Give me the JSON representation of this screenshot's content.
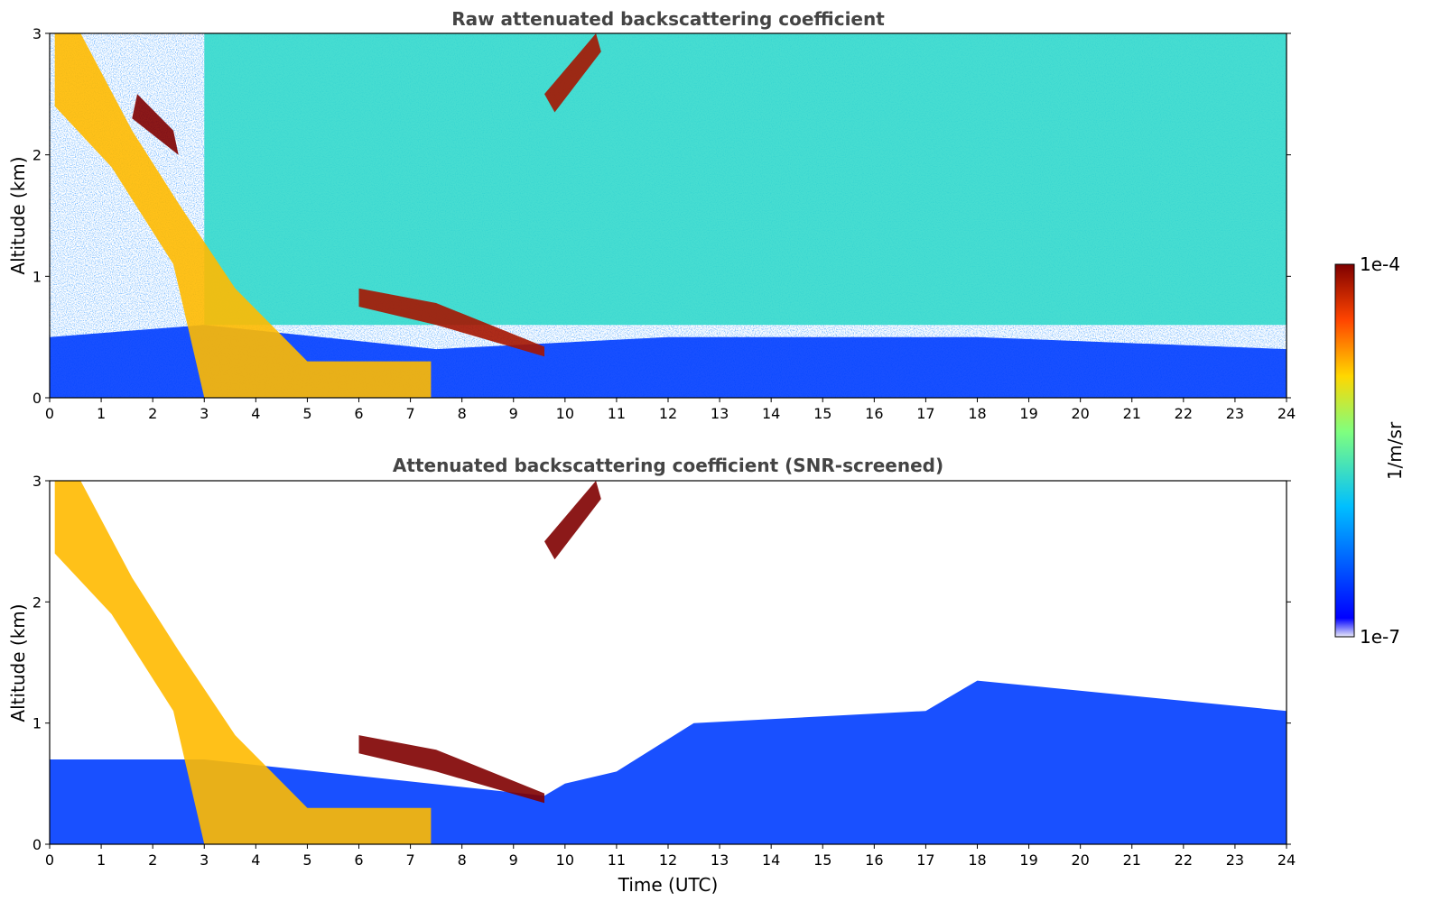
{
  "chart_data": [
    {
      "type": "heatmap",
      "title": "Raw attenuated backscattering coefficient",
      "xlabel": "",
      "ylabel": "Altitude (km)",
      "xlim": [
        0,
        24
      ],
      "ylim": [
        0,
        3
      ],
      "x_ticks": [
        "0",
        "1",
        "2",
        "3",
        "4",
        "5",
        "6",
        "7",
        "8",
        "9",
        "10",
        "11",
        "12",
        "13",
        "14",
        "15",
        "16",
        "17",
        "18",
        "19",
        "20",
        "21",
        "22",
        "23",
        "24"
      ],
      "y_ticks": [
        "0",
        "1",
        "2",
        "3"
      ],
      "features": [
        {
          "name": "low aerosol layer",
          "level": 0.22,
          "points": [
            [
              0,
              0
            ],
            [
              24,
              0
            ],
            [
              24,
              0.4
            ],
            [
              18,
              0.5
            ],
            [
              12,
              0.5
            ],
            [
              7.5,
              0.4
            ],
            [
              3,
              0.6
            ],
            [
              0,
              0.5
            ]
          ]
        },
        {
          "name": "high noise field",
          "level": 0.4,
          "points": [
            [
              3,
              0.6
            ],
            [
              24,
              0.6
            ],
            [
              24,
              3
            ],
            [
              3,
              3
            ]
          ]
        },
        {
          "name": "descending cloud band",
          "level": 0.7,
          "points": [
            [
              0.1,
              3
            ],
            [
              0.6,
              3
            ],
            [
              1.6,
              2.2
            ],
            [
              2.5,
              1.6
            ],
            [
              3.6,
              0.9
            ],
            [
              5,
              0.3
            ],
            [
              7.4,
              0.3
            ],
            [
              7.4,
              0
            ],
            [
              3,
              0
            ],
            [
              2.4,
              1.1
            ],
            [
              1.2,
              1.9
            ],
            [
              0.1,
              2.4
            ]
          ]
        },
        {
          "name": "cloud top high-backscatter",
          "level": 1.0,
          "points": [
            [
              1.6,
              2.3
            ],
            [
              2.5,
              2.0
            ],
            [
              2.4,
              2.2
            ],
            [
              1.7,
              2.5
            ]
          ]
        },
        {
          "name": "low cloud deck",
          "level": 0.95,
          "points": [
            [
              6,
              0.9
            ],
            [
              7.5,
              0.78
            ],
            [
              9.6,
              0.42
            ],
            [
              9.6,
              0.34
            ],
            [
              7.5,
              0.6
            ],
            [
              6,
              0.75
            ]
          ]
        },
        {
          "name": "cirrus",
          "level": 0.95,
          "points": [
            [
              9.6,
              2.5
            ],
            [
              10.6,
              3.0
            ],
            [
              10.7,
              2.85
            ],
            [
              9.8,
              2.35
            ]
          ]
        }
      ]
    },
    {
      "type": "heatmap",
      "title": "Attenuated backscattering coefficient (SNR-screened)",
      "xlabel": "Time (UTC)",
      "ylabel": "Altitude (km)",
      "xlim": [
        0,
        24
      ],
      "ylim": [
        0,
        3
      ],
      "x_ticks": [
        "0",
        "1",
        "2",
        "3",
        "4",
        "5",
        "6",
        "7",
        "8",
        "9",
        "10",
        "11",
        "12",
        "13",
        "14",
        "15",
        "16",
        "17",
        "18",
        "19",
        "20",
        "21",
        "22",
        "23",
        "24"
      ],
      "y_ticks": [
        "0",
        "1",
        "2",
        "3"
      ],
      "features": [
        {
          "name": "screened boundary layer",
          "level": 0.22,
          "points": [
            [
              0,
              0
            ],
            [
              24,
              0
            ],
            [
              24,
              1.1
            ],
            [
              18,
              1.35
            ],
            [
              17,
              1.1
            ],
            [
              12.5,
              1.0
            ],
            [
              11,
              0.6
            ],
            [
              10,
              0.5
            ],
            [
              9.6,
              0.4
            ],
            [
              3,
              0.7
            ],
            [
              0,
              0.7
            ]
          ]
        },
        {
          "name": "descending cloud band",
          "level": 0.7,
          "points": [
            [
              0.1,
              3
            ],
            [
              0.6,
              3
            ],
            [
              1.6,
              2.2
            ],
            [
              2.5,
              1.6
            ],
            [
              3.6,
              0.9
            ],
            [
              5,
              0.3
            ],
            [
              7.4,
              0.3
            ],
            [
              7.4,
              0
            ],
            [
              3,
              0
            ],
            [
              2.4,
              1.1
            ],
            [
              1.2,
              1.9
            ],
            [
              0.1,
              2.4
            ]
          ]
        },
        {
          "name": "low cloud deck",
          "level": 1.0,
          "points": [
            [
              6,
              0.9
            ],
            [
              7.5,
              0.78
            ],
            [
              9.6,
              0.42
            ],
            [
              9.6,
              0.34
            ],
            [
              7.5,
              0.6
            ],
            [
              6,
              0.75
            ]
          ]
        },
        {
          "name": "cirrus",
          "level": 1.0,
          "points": [
            [
              9.6,
              2.5
            ],
            [
              10.6,
              3.0
            ],
            [
              10.7,
              2.85
            ],
            [
              9.8,
              2.35
            ]
          ]
        }
      ]
    }
  ],
  "colorbar": {
    "label": "1/m/sr",
    "max_label": "1e-4",
    "min_label": "1e-7",
    "colormap": "jet",
    "colors": [
      "#e9e9f7",
      "#0000ff",
      "#00bfff",
      "#7fff7f",
      "#ffd700",
      "#ff4500",
      "#7f0000"
    ]
  }
}
